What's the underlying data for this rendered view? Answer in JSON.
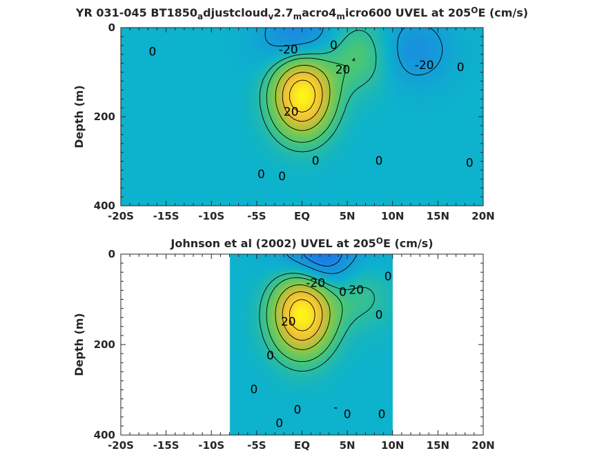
{
  "chart_data": [
    {
      "type": "heatmap",
      "title_main": "YR 031-045 BT1850",
      "title_parts": [
        {
          "text": "YR 031-045 BT1850",
          "sub": false
        },
        {
          "text": "a",
          "sub": true
        },
        {
          "text": "djustcloud",
          "sub": false
        },
        {
          "text": "v",
          "sub": true
        },
        {
          "text": "2.7",
          "sub": false
        },
        {
          "text": "m",
          "sub": true
        },
        {
          "text": "acro4",
          "sub": false
        },
        {
          "text": "m",
          "sub": true
        },
        {
          "text": "icro600 UVEL at 205",
          "sub": false
        },
        {
          "text": "O",
          "sup": true
        },
        {
          "text": "E (cm/s)",
          "sub": false
        }
      ],
      "ylabel": "Depth (m)",
      "xlim": [
        -20,
        20
      ],
      "ylim": [
        400,
        0
      ],
      "xticks": [
        -20,
        -15,
        -10,
        -5,
        0,
        5,
        10,
        15,
        20
      ],
      "xtick_labels": [
        "-20S",
        "-15S",
        "-10S",
        "-5S",
        "EQ",
        "5N",
        "10N",
        "15N",
        "20N"
      ],
      "yticks": [
        0,
        200,
        400
      ],
      "ytick_labels": [
        "0",
        "200",
        "400"
      ],
      "data_extent": [
        -20,
        20
      ],
      "features": [
        {
          "kind": "max",
          "lat": 0,
          "depth": 150,
          "value": 100
        },
        {
          "kind": "min",
          "lat": 0,
          "depth": 30,
          "value": -30
        },
        {
          "kind": "max",
          "lat": 6,
          "depth": 60,
          "value": 25
        },
        {
          "kind": "min",
          "lat": 12,
          "depth": 50,
          "value": -20
        }
      ],
      "contour_labels": [
        {
          "text": "0",
          "lat": -16.5,
          "depth": 55
        },
        {
          "text": "-20",
          "lat": -1.5,
          "depth": 50
        },
        {
          "text": "0",
          "lat": 3.5,
          "depth": 40
        },
        {
          "text": "20",
          "lat": 4.5,
          "depth": 95
        },
        {
          "text": "-20",
          "lat": 13.5,
          "depth": 85
        },
        {
          "text": "0",
          "lat": 17.5,
          "depth": 90
        },
        {
          "text": "20",
          "lat": -1.2,
          "depth": 190
        },
        {
          "text": "0",
          "lat": 1.5,
          "depth": 300
        },
        {
          "text": "0",
          "lat": 8.5,
          "depth": 300
        },
        {
          "text": "0",
          "lat": 18.5,
          "depth": 305
        },
        {
          "text": "0",
          "lat": -4.5,
          "depth": 330
        },
        {
          "text": "0",
          "lat": -2.2,
          "depth": 335
        }
      ]
    },
    {
      "type": "heatmap",
      "title_main": "Johnson et al (2002) UVEL at 205",
      "title_parts": [
        {
          "text": "Johnson et al (2002) UVEL at 205",
          "sub": false
        },
        {
          "text": "O",
          "sup": true
        },
        {
          "text": "E (cm/s)",
          "sub": false
        }
      ],
      "ylabel": "Depth (m)",
      "xlim": [
        -20,
        20
      ],
      "ylim": [
        400,
        0
      ],
      "xticks": [
        -20,
        -15,
        -10,
        -5,
        0,
        5,
        10,
        15,
        20
      ],
      "xtick_labels": [
        "-20S",
        "-15S",
        "-10S",
        "-5S",
        "EQ",
        "5N",
        "10N",
        "15N",
        "20N"
      ],
      "yticks": [
        0,
        200,
        400
      ],
      "ytick_labels": [
        "0",
        "200",
        "400"
      ],
      "data_extent": [
        -8,
        10
      ],
      "features": [
        {
          "kind": "max",
          "lat": 0,
          "depth": 130,
          "value": 100
        },
        {
          "kind": "min",
          "lat": 2,
          "depth": 20,
          "value": -40
        },
        {
          "kind": "max",
          "lat": 6,
          "depth": 70,
          "value": 25
        },
        {
          "kind": "min",
          "lat": 8,
          "depth": 40,
          "value": -10
        }
      ],
      "contour_labels": [
        {
          "text": "-20",
          "lat": 1.5,
          "depth": 65
        },
        {
          "text": "0",
          "lat": 4.5,
          "depth": 85
        },
        {
          "text": "20",
          "lat": 6,
          "depth": 80
        },
        {
          "text": "0",
          "lat": 9.5,
          "depth": 50
        },
        {
          "text": "0",
          "lat": 8.5,
          "depth": 135
        },
        {
          "text": "20",
          "lat": -1.5,
          "depth": 150
        },
        {
          "text": "0",
          "lat": -3.5,
          "depth": 225
        },
        {
          "text": "0",
          "lat": -5.3,
          "depth": 300
        },
        {
          "text": "0",
          "lat": -0.5,
          "depth": 345
        },
        {
          "text": "-",
          "lat": 3.7,
          "depth": 340
        },
        {
          "text": "0",
          "lat": 5,
          "depth": 355
        },
        {
          "text": "0",
          "lat": -2.5,
          "depth": 375
        },
        {
          "text": "0",
          "lat": 8.8,
          "depth": 355
        }
      ]
    }
  ]
}
